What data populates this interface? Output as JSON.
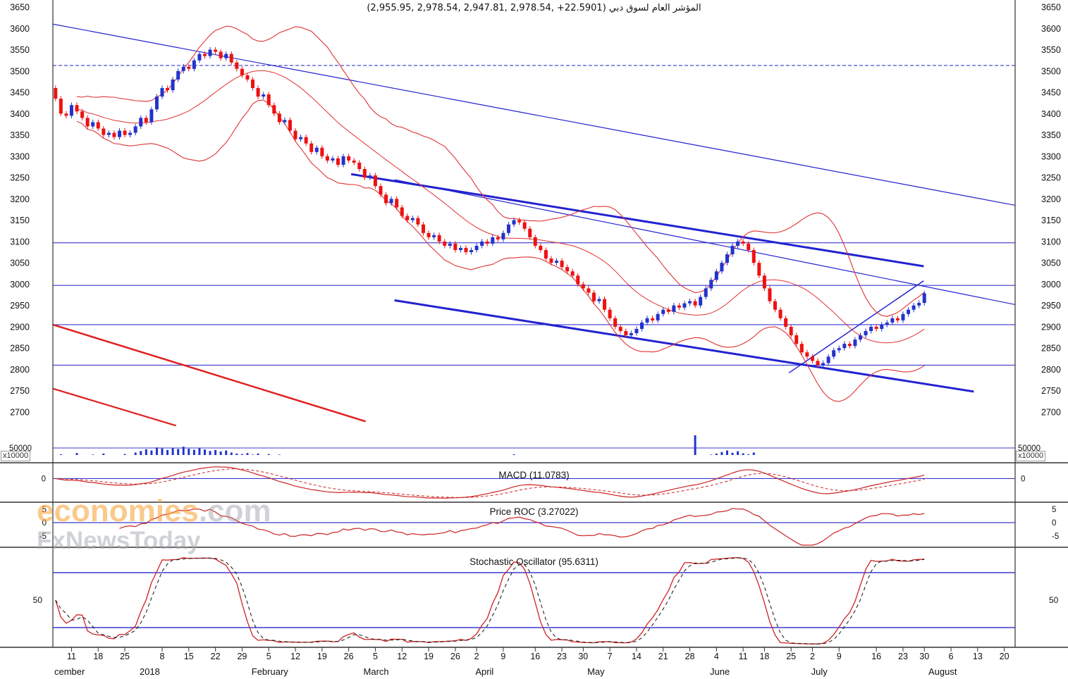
{
  "watermark": {
    "brand": "economies",
    "suffix": ".com",
    "tagline": "FxNewsToday"
  },
  "colors": {
    "up": "#2233cc",
    "down": "#ee1111",
    "band": "#e03333",
    "trend_blue": "#2222d0",
    "trend_red": "#e02020",
    "ref_blue": "#3a3ad0",
    "volume": "#2233cc",
    "macd_line": "#cc2222",
    "macd_signal": "#cc2222",
    "roc_line": "#cc2222",
    "stoch_k": "#cc2222",
    "stoch_d": "#111111",
    "axis_text": "#111111",
    "frame": "#333333"
  },
  "chart_data": {
    "type": "candlestick",
    "title": "(2,955.95, 2,978.54, 2,947.81, 2,978.54, +22.5901) المؤشر العام لسوق دبي",
    "last_ohlc": {
      "open": 2955.95,
      "high": 2978.54,
      "low": 2947.81,
      "close": 2978.54,
      "change": 22.5901
    },
    "ylim": [
      2650,
      3680
    ],
    "y_ticks": [
      3650,
      3600,
      3550,
      3500,
      3450,
      3400,
      3350,
      3300,
      3250,
      3200,
      3150,
      3100,
      3050,
      3000,
      2950,
      2900,
      2850,
      2800,
      2750,
      2700
    ],
    "volume_tick": "50000",
    "volume_multiplier": "x10000",
    "open_seed": 3460,
    "closes": [
      3435,
      3400,
      3395,
      3420,
      3405,
      3390,
      3370,
      3380,
      3365,
      3350,
      3355,
      3345,
      3360,
      3350,
      3355,
      3370,
      3390,
      3380,
      3410,
      3440,
      3460,
      3455,
      3480,
      3500,
      3510,
      3505,
      3525,
      3540,
      3535,
      3550,
      3545,
      3530,
      3540,
      3520,
      3505,
      3490,
      3480,
      3460,
      3440,
      3445,
      3420,
      3400,
      3380,
      3385,
      3360,
      3340,
      3345,
      3330,
      3310,
      3320,
      3300,
      3290,
      3295,
      3280,
      3300,
      3290,
      3285,
      3270,
      3250,
      3255,
      3230,
      3210,
      3190,
      3200,
      3180,
      3160,
      3150,
      3155,
      3140,
      3120,
      3110,
      3115,
      3100,
      3090,
      3095,
      3080,
      3085,
      3075,
      3080,
      3090,
      3100,
      3095,
      3110,
      3105,
      3120,
      3140,
      3150,
      3145,
      3130,
      3110,
      3090,
      3080,
      3060,
      3050,
      3055,
      3040,
      3030,
      3020,
      3000,
      2990,
      2980,
      2960,
      2965,
      2940,
      2920,
      2900,
      2890,
      2880,
      2885,
      2895,
      2910,
      2920,
      2915,
      2930,
      2940,
      2935,
      2950,
      2945,
      2955,
      2960,
      2950,
      2970,
      2990,
      3010,
      3030,
      3050,
      3070,
      3090,
      3100,
      3095,
      3080,
      3050,
      3020,
      2990,
      2960,
      2940,
      2920,
      2900,
      2880,
      2860,
      2840,
      2830,
      2820,
      2810,
      2815,
      2830,
      2845,
      2850,
      2860,
      2855,
      2870,
      2880,
      2890,
      2900,
      2895,
      2905,
      2910,
      2920,
      2915,
      2930,
      2940,
      2950,
      2955.95,
      2978.54
    ],
    "volumes": [
      18,
      25,
      14,
      20,
      30,
      22,
      16,
      24,
      20,
      28,
      18,
      14,
      22,
      26,
      20,
      32,
      38,
      45,
      40,
      52,
      48,
      42,
      50,
      46,
      55,
      47,
      43,
      49,
      44,
      38,
      42,
      36,
      40,
      32,
      28,
      26,
      30,
      24,
      28,
      22,
      26,
      20,
      24,
      18,
      22,
      16,
      20,
      15,
      19,
      22,
      18,
      20,
      16,
      19,
      15,
      17,
      14,
      19,
      16,
      20,
      15,
      18,
      22,
      16,
      19,
      13,
      17,
      14,
      19,
      16,
      13,
      17,
      14,
      11,
      16,
      13,
      10,
      14,
      11,
      16,
      13,
      17,
      14,
      19,
      16,
      20,
      25,
      19,
      14,
      17,
      13,
      16,
      11,
      14,
      17,
      13,
      10,
      14,
      11,
      13,
      14,
      11,
      16,
      13,
      17,
      14,
      19,
      16,
      13,
      10,
      14,
      11,
      16,
      13,
      10,
      14,
      11,
      8,
      13,
      10,
      100,
      16,
      19,
      24,
      28,
      34,
      40,
      31,
      37,
      29,
      25,
      32,
      17,
      22,
      16,
      19,
      14,
      17,
      13,
      16,
      11,
      14,
      13,
      10,
      14,
      11,
      16,
      13,
      17,
      14,
      19,
      16,
      20,
      17,
      14,
      19,
      16,
      13,
      17,
      14,
      19,
      22,
      16,
      20
    ],
    "overlays": {
      "bollinger_period": 20,
      "hlines": [
        {
          "price": 3513,
          "dashed": true
        },
        {
          "price": 3097
        },
        {
          "price": 2997
        },
        {
          "price": 2905
        },
        {
          "price": 2810
        }
      ],
      "trendlines": [
        {
          "x1": 0.0,
          "p1": 3610,
          "x2": 1.0,
          "p2": 3185,
          "color": "blue",
          "w": 1.2
        },
        {
          "x1": 0.31,
          "p1": 3258,
          "x2": 0.905,
          "p2": 3042,
          "color": "blue",
          "w": 3
        },
        {
          "x1": 0.355,
          "p1": 3245,
          "x2": 1.0,
          "p2": 2952,
          "color": "blue",
          "w": 1.2
        },
        {
          "x1": 0.355,
          "p1": 2962,
          "x2": 0.957,
          "p2": 2748,
          "color": "blue",
          "w": 3
        },
        {
          "x1": 0.765,
          "p1": 2792,
          "x2": 0.905,
          "p2": 3008,
          "color": "blue",
          "w": 1.5
        },
        {
          "x1": 0.0,
          "p1": 2905,
          "x2": 0.325,
          "p2": 2678,
          "color": "red",
          "w": 2.5
        },
        {
          "x1": 0.0,
          "p1": 2755,
          "x2": 0.128,
          "p2": 2668,
          "color": "red",
          "w": 2.2
        }
      ]
    },
    "dates": [
      [
        "11",
        3
      ],
      [
        "18",
        8
      ],
      [
        "25",
        13
      ],
      [
        "8",
        20
      ],
      [
        "15",
        25
      ],
      [
        "22",
        30
      ],
      [
        "29",
        35
      ],
      [
        "5",
        40
      ],
      [
        "12",
        45
      ],
      [
        "19",
        50
      ],
      [
        "26",
        55
      ],
      [
        "5",
        60
      ],
      [
        "12",
        65
      ],
      [
        "19",
        70
      ],
      [
        "26",
        75
      ],
      [
        "2",
        79
      ],
      [
        "9",
        84
      ],
      [
        "16",
        90
      ],
      [
        "23",
        95
      ],
      [
        "30",
        99
      ],
      [
        "7",
        104
      ],
      [
        "14",
        109
      ],
      [
        "21",
        114
      ],
      [
        "28",
        119
      ],
      [
        "4",
        124
      ],
      [
        "11",
        129
      ],
      [
        "18",
        133
      ],
      [
        "25",
        138
      ],
      [
        "2",
        142
      ],
      [
        "9",
        147
      ],
      [
        "16",
        154
      ],
      [
        "23",
        159
      ],
      [
        "30",
        163
      ],
      [
        "6",
        168
      ],
      [
        "13",
        173
      ],
      [
        "20",
        178
      ]
    ],
    "months": [
      [
        "cember",
        0
      ],
      [
        "2018",
        16
      ],
      [
        "February",
        37
      ],
      [
        "March",
        58
      ],
      [
        "April",
        79
      ],
      [
        "May",
        100
      ],
      [
        "June",
        123
      ],
      [
        "July",
        142
      ],
      [
        "August",
        164
      ]
    ],
    "indicators": [
      {
        "name": "MACD",
        "label": "MACD (11.0783)",
        "value": 11.0783,
        "ticks": [
          "0"
        ]
      },
      {
        "name": "Price ROC",
        "label": "Price ROC (3.27022)",
        "value": 3.27022,
        "period": 12,
        "ticks": [
          "5",
          "0",
          "-5"
        ]
      },
      {
        "name": "Stochastic Oscillator",
        "label": "Stochastic Oscillator (95.6311)",
        "value": 95.6311,
        "ticks": [
          "50"
        ],
        "bands": [
          80,
          20
        ]
      }
    ]
  }
}
